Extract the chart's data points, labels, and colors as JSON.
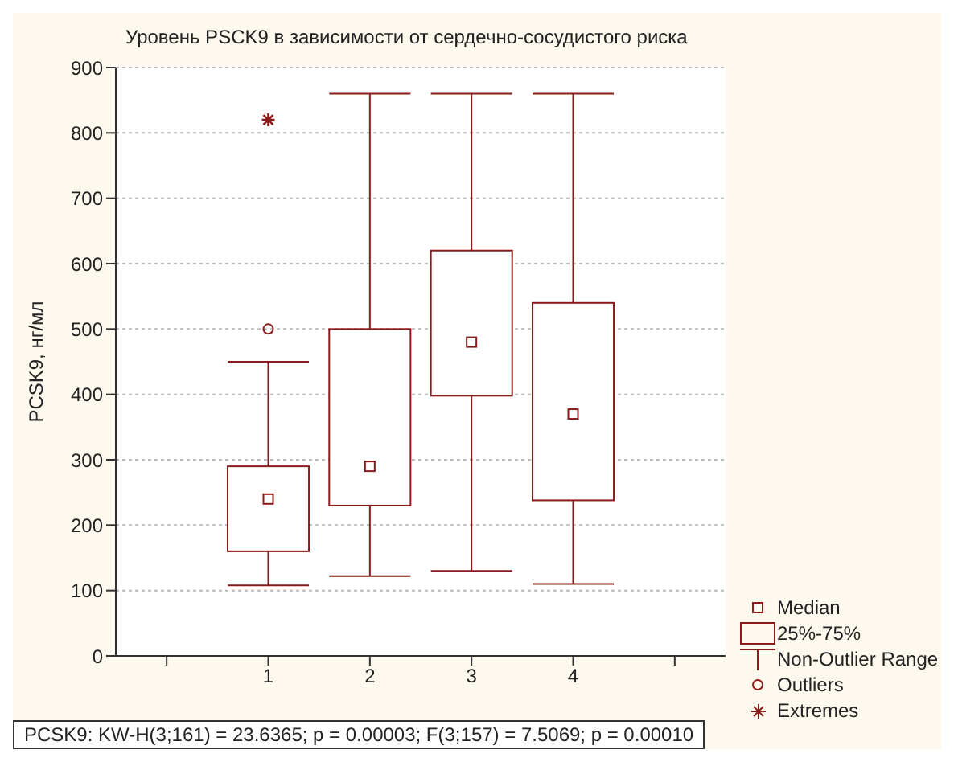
{
  "chart_data": {
    "type": "box",
    "title": "Уровень PSCK9 в зависимости от сердечно-сосудистого риска",
    "ylabel": "PCSK9, нг/мл",
    "categories": [
      null,
      "1",
      "2",
      "3",
      "4",
      null
    ],
    "series": [
      {
        "color": "#8b1a1a",
        "boxes": [
          null,
          {
            "low": 108,
            "q1": 160,
            "median": 240,
            "q3": 290,
            "high": 450,
            "outliers": [
              500
            ]
          },
          {
            "low": 122,
            "q1": 230,
            "median": 290,
            "q3": 500,
            "high": 860
          },
          {
            "low": 130,
            "q1": 398,
            "median": 480,
            "q3": 620,
            "high": 860
          },
          {
            "low": 110,
            "q1": 238,
            "median": 370,
            "q3": 540,
            "high": 860
          },
          null
        ]
      },
      {
        "type": "scatter",
        "color": "#8b1a1a",
        "marker": "cross",
        "x": [
          "1"
        ],
        "values": [
          820
        ]
      }
    ],
    "ylim": [
      0,
      900
    ],
    "yticks": [
      0,
      100,
      200,
      300,
      400,
      500,
      600,
      700,
      800,
      900
    ],
    "grid": "y",
    "annotations": [
      "Median",
      "25%-75%",
      "Non-Outlier Range",
      "Outliers",
      "Extremes",
      "PCSK9:  KW-H(3;161) = 23.6365; p = 0.00003;  F(3;157) = 7.5069; p = 0.00010"
    ]
  }
}
